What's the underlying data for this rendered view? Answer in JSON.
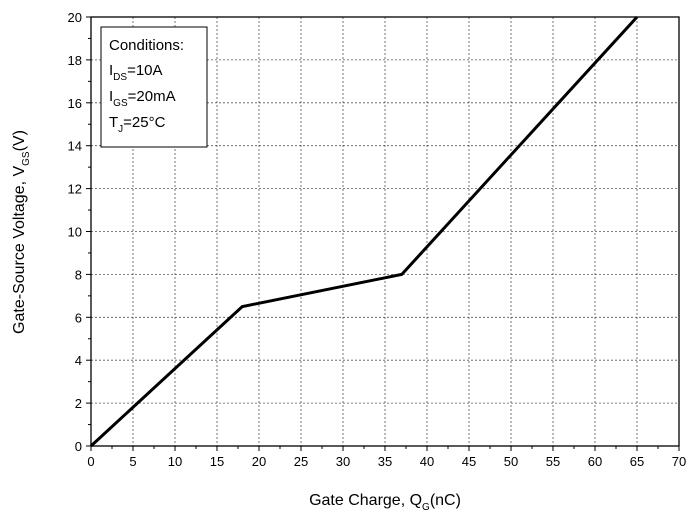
{
  "chart_data": {
    "type": "line",
    "xlabel": {
      "main": "Gate Charge, Q",
      "sub": "G",
      "unit": "(nC)"
    },
    "ylabel": {
      "main": "Gate-Source Voltage, V",
      "sub": "GS",
      "unit": "(V)"
    },
    "xlim": [
      0,
      70
    ],
    "ylim": [
      0,
      20
    ],
    "x_ticks": [
      0,
      5,
      10,
      15,
      20,
      25,
      30,
      35,
      40,
      45,
      50,
      55,
      60,
      65,
      70
    ],
    "y_ticks": [
      0,
      2,
      4,
      6,
      8,
      10,
      12,
      14,
      16,
      18,
      20
    ],
    "grid": true,
    "series": [
      {
        "points": [
          [
            0,
            0
          ],
          [
            18,
            6.5
          ],
          [
            37,
            8
          ],
          [
            65,
            20
          ]
        ]
      }
    ],
    "annotation": {
      "title": "Conditions:",
      "lines": [
        {
          "main": "I",
          "sub": "DS",
          "rest": "=10A"
        },
        {
          "main": "I",
          "sub": "GS",
          "rest": "=20mA"
        },
        {
          "main": "T",
          "sub": "J",
          "rest": "=25°C"
        }
      ],
      "placement": "top-left"
    },
    "colors": {
      "line": "#000000",
      "grid": "#555555"
    }
  }
}
